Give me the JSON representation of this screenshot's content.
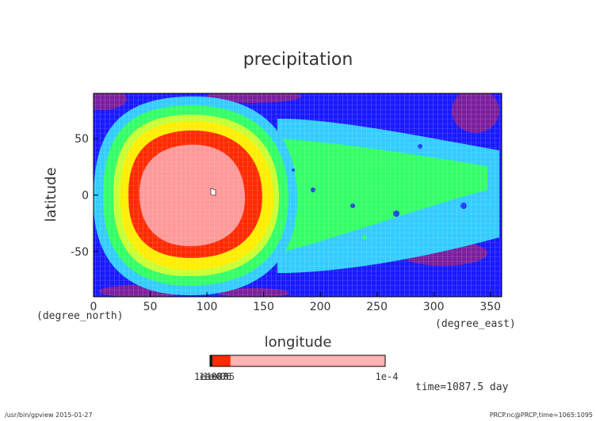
{
  "chart_data": {
    "type": "heatmap",
    "title": "precipitation",
    "xlabel": "longitude",
    "xunit": "(degree_east)",
    "ylabel": "latitude",
    "yunit": "(degree_north)",
    "xlim": [
      0,
      360
    ],
    "ylim": [
      -90,
      90
    ],
    "x_ticks": [
      0,
      50,
      100,
      150,
      200,
      250,
      300,
      350
    ],
    "y_ticks": [
      50,
      0,
      -50
    ],
    "x_tick_labels": [
      "0",
      "50",
      "100",
      "150",
      "200",
      "250",
      "300",
      "350"
    ],
    "y_tick_labels": [
      "50",
      "0",
      "-50"
    ],
    "grid": false,
    "colorbar": {
      "orientation": "horizontal",
      "left_label": "1e-08",
      "right_label": "1e-4",
      "overlap_labels": [
        "1e-07",
        "1e-06",
        "1e-05"
      ],
      "segments": [
        {
          "color": "#1a1a1a",
          "weight": 0.6
        },
        {
          "color": "#ff2a00",
          "weight": 4.6
        },
        {
          "color": "#ffb3b3",
          "weight": 39.2
        }
      ]
    },
    "levels_colors": [
      "#7b1f9e",
      "#1a1aff",
      "#33ccff",
      "#33ff66",
      "#c8ff33",
      "#ffee00",
      "#ff2a00",
      "#ff9999"
    ],
    "features": [
      {
        "name": "high-precip-core",
        "center_lon": 95,
        "center_lat": 5,
        "value": "1e-4"
      },
      {
        "name": "outer-rings-center",
        "center_lon": 95,
        "center_lat": 5
      }
    ],
    "time": "time=1087.5 day"
  },
  "footer": {
    "left": "/usr/bin/gpview  2015-01-27",
    "right": "PRCP.nc@PRCP,time=1065:1095"
  }
}
